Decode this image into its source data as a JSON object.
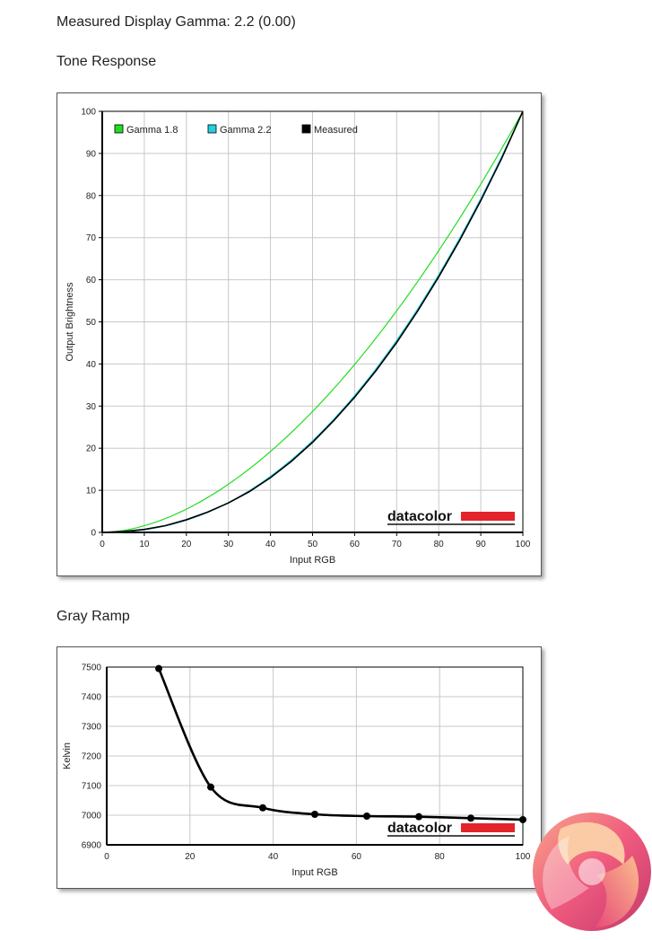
{
  "header": {
    "gamma_text": "Measured Display Gamma: 2.2 (0.00)",
    "tone_title": "Tone Response",
    "gray_title": "Gray Ramp"
  },
  "brand": {
    "text": "datacolor",
    "bar_color": "#e3242b"
  },
  "chart_data": [
    {
      "type": "line",
      "title": "",
      "xlabel": "Input RGB",
      "ylabel": "Output Brightness",
      "xlim": [
        0,
        100
      ],
      "ylim": [
        0,
        100
      ],
      "x_ticks": [
        0,
        10,
        20,
        30,
        40,
        50,
        60,
        70,
        80,
        90,
        100
      ],
      "y_ticks": [
        0,
        10,
        20,
        30,
        40,
        50,
        60,
        70,
        80,
        90,
        100
      ],
      "grid": true,
      "legend_position": "top-left",
      "series": [
        {
          "name": "Gamma 1.8",
          "color": "#22dd22",
          "gamma": 1.8,
          "x": [
            0,
            5,
            10,
            15,
            20,
            25,
            30,
            35,
            40,
            45,
            50,
            55,
            60,
            65,
            70,
            75,
            80,
            85,
            90,
            95,
            100
          ],
          "y": [
            0,
            0.5,
            1.6,
            3.3,
            5.5,
            8.2,
            11.5,
            15.2,
            19.2,
            23.7,
            28.7,
            34.0,
            39.9,
            46.0,
            52.6,
            59.6,
            66.9,
            74.6,
            82.7,
            91.2,
            100
          ]
        },
        {
          "name": "Gamma 2.2",
          "color": "#22d0e0",
          "gamma": 2.2,
          "x": [
            0,
            5,
            10,
            15,
            20,
            25,
            30,
            35,
            40,
            45,
            50,
            55,
            60,
            65,
            70,
            75,
            80,
            85,
            90,
            95,
            100
          ],
          "y": [
            0,
            0.1,
            0.6,
            1.5,
            2.9,
            4.7,
            7.1,
            9.9,
            13.3,
            17.3,
            21.8,
            26.8,
            32.5,
            38.7,
            45.6,
            53.1,
            61.2,
            69.9,
            79.3,
            89.3,
            100
          ]
        },
        {
          "name": "Measured",
          "color": "#000000",
          "x": [
            0,
            5,
            10,
            15,
            20,
            25,
            30,
            35,
            40,
            45,
            50,
            55,
            60,
            65,
            70,
            75,
            80,
            85,
            90,
            95,
            100
          ],
          "y": [
            0,
            0.2,
            0.7,
            1.6,
            3.0,
            4.8,
            7.0,
            9.7,
            13.0,
            16.9,
            21.4,
            26.5,
            32.1,
            38.3,
            45.1,
            52.6,
            60.7,
            69.4,
            78.8,
            88.9,
            100
          ]
        }
      ]
    },
    {
      "type": "line",
      "title": "",
      "xlabel": "Input RGB",
      "ylabel": "Kelvin",
      "xlim": [
        0,
        100
      ],
      "ylim": [
        6900,
        7500
      ],
      "x_ticks": [
        0,
        20,
        40,
        60,
        80,
        100
      ],
      "y_ticks": [
        6900,
        7000,
        7100,
        7200,
        7300,
        7400,
        7500
      ],
      "grid": true,
      "series": [
        {
          "name": "",
          "color": "#000000",
          "x": [
            12.5,
            25,
            37.5,
            50,
            62.5,
            75,
            87.5,
            100
          ],
          "y": [
            7495,
            7095,
            7025,
            7003,
            6997,
            6995,
            6990,
            6985
          ]
        }
      ]
    }
  ]
}
